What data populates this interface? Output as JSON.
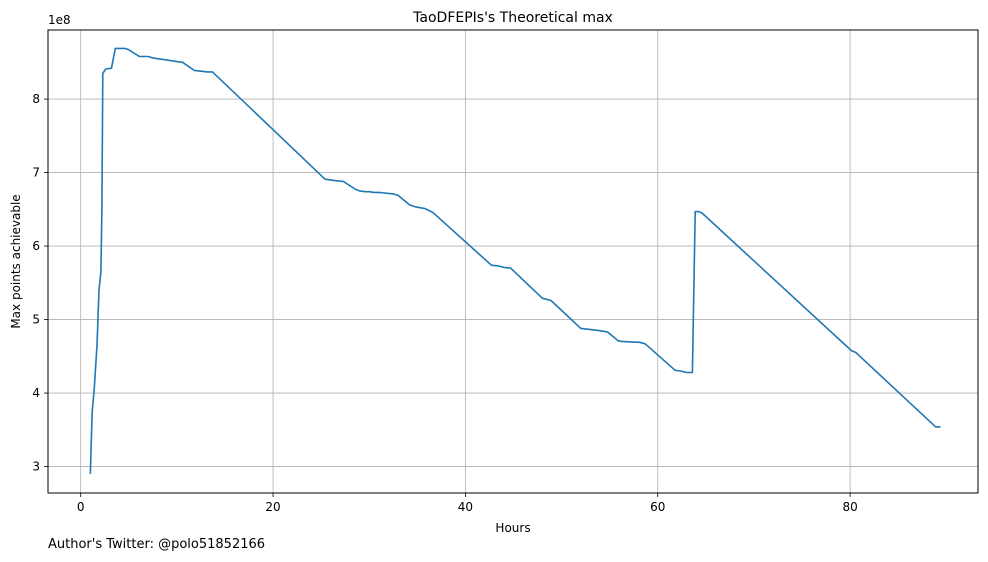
{
  "footer": "Author's Twitter: @polo51852166",
  "chart_data": {
    "type": "line",
    "title": "TaoDFEPIs's Theoretical max",
    "xlabel": "Hours",
    "ylabel": "Max points achievable",
    "y_offset_label": "1e8",
    "xlim": [
      -3.4,
      93.3
    ],
    "ylim": [
      2.64,
      8.94
    ],
    "xticks": [
      0,
      20,
      40,
      60,
      80
    ],
    "yticks": [
      3,
      4,
      5,
      6,
      7,
      8
    ],
    "grid": true,
    "line_color": "#1f77b4",
    "series": [
      {
        "x": [
          1.0,
          1.2,
          1.4,
          1.7,
          1.9,
          2.1,
          2.2,
          2.3,
          2.6,
          3.2,
          3.6,
          4.6,
          5.0,
          6.1,
          7.0,
          7.5,
          8.0,
          9.0,
          10.0,
          10.6,
          11.8,
          12.5,
          13.2,
          13.7,
          25.4,
          26.5,
          27.3,
          28.6,
          29.0,
          29.6,
          30.0,
          30.5,
          31.0,
          32.5,
          33.0,
          34.2,
          34.9,
          35.8,
          36.6,
          42.7,
          43.4,
          44.0,
          44.7,
          48.0,
          48.9,
          52.0,
          52.6,
          53.9,
          54.8,
          55.9,
          56.4,
          58.1,
          58.7,
          61.8,
          62.4,
          63.0,
          63.6,
          63.9,
          64.2,
          64.6,
          80.1,
          80.6,
          88.9,
          89.4
        ],
        "y": [
          2.9,
          3.75,
          4.05,
          4.65,
          5.4,
          5.65,
          6.5,
          8.35,
          8.41,
          8.42,
          8.69,
          8.69,
          8.67,
          8.58,
          8.58,
          8.56,
          8.55,
          8.53,
          8.51,
          8.5,
          8.39,
          8.38,
          8.37,
          8.37,
          6.91,
          6.89,
          6.88,
          6.77,
          6.75,
          6.74,
          6.74,
          6.73,
          6.73,
          6.71,
          6.69,
          6.56,
          6.53,
          6.51,
          6.46,
          5.74,
          5.73,
          5.71,
          5.7,
          5.29,
          5.26,
          4.88,
          4.87,
          4.85,
          4.83,
          4.71,
          4.7,
          4.69,
          4.67,
          4.31,
          4.3,
          4.28,
          4.28,
          6.47,
          6.47,
          6.45,
          4.58,
          4.55,
          3.54,
          3.54
        ]
      }
    ]
  }
}
